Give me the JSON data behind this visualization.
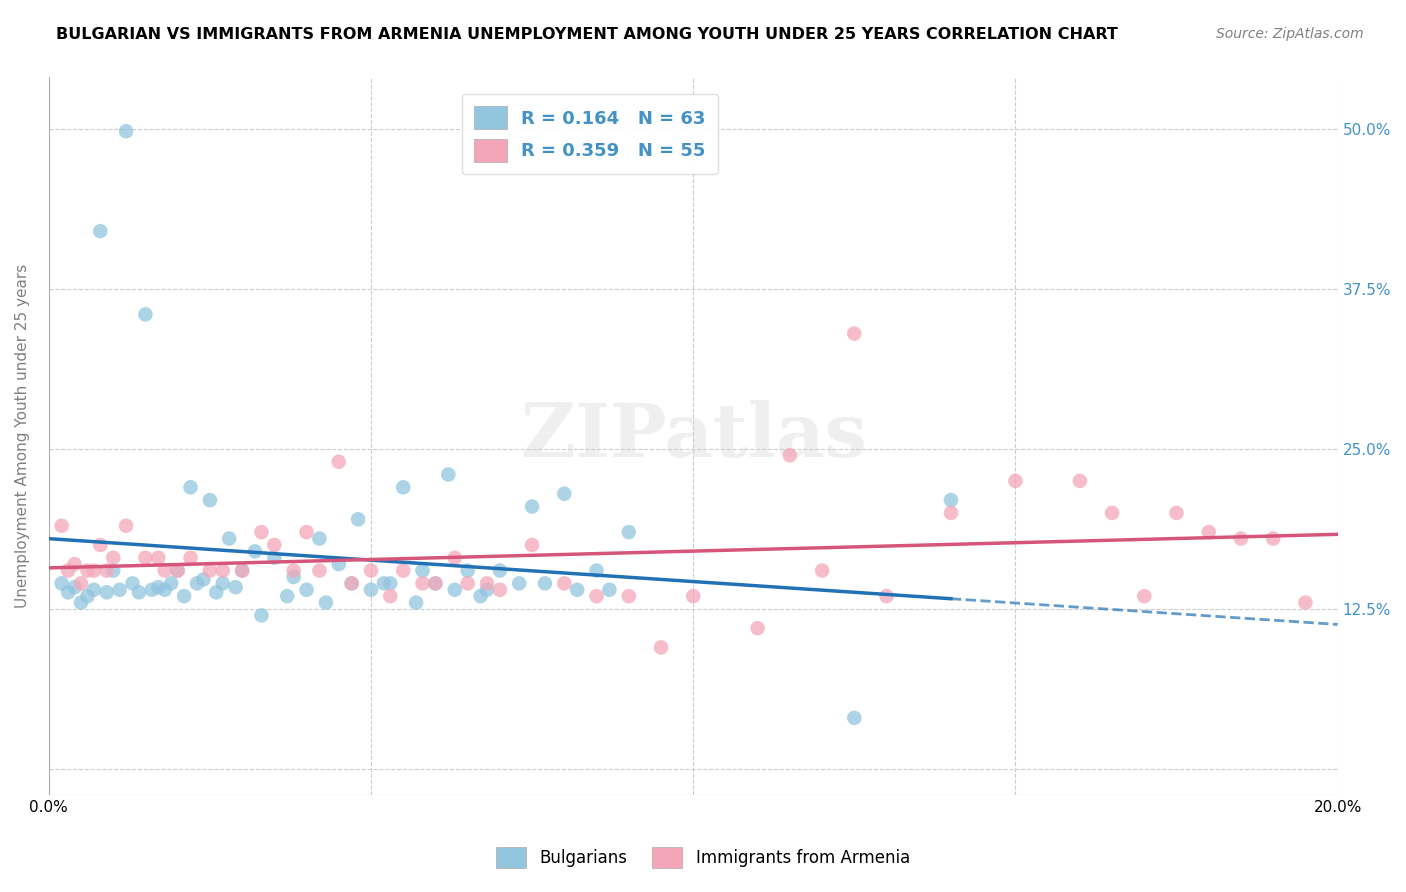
{
  "title": "BULGARIAN VS IMMIGRANTS FROM ARMENIA UNEMPLOYMENT AMONG YOUTH UNDER 25 YEARS CORRELATION CHART",
  "source": "Source: ZipAtlas.com",
  "ylabel": "Unemployment Among Youth under 25 years",
  "xlim": [
    0.0,
    0.2
  ],
  "ylim": [
    -0.02,
    0.54
  ],
  "legend_label1": "Bulgarians",
  "legend_label2": "Immigrants from Armenia",
  "R1": 0.164,
  "N1": 63,
  "R2": 0.359,
  "N2": 55,
  "color_blue": "#92c5de",
  "color_blue_line": "#2171b5",
  "color_pink": "#f4a6b8",
  "color_pink_line": "#d6557a",
  "color_label": "#4292c6",
  "watermark": "ZIPatlas",
  "bulgarians_x": [
    0.002,
    0.003,
    0.004,
    0.005,
    0.006,
    0.007,
    0.008,
    0.009,
    0.01,
    0.011,
    0.012,
    0.013,
    0.014,
    0.015,
    0.016,
    0.017,
    0.018,
    0.019,
    0.02,
    0.021,
    0.022,
    0.023,
    0.024,
    0.025,
    0.026,
    0.027,
    0.028,
    0.029,
    0.03,
    0.032,
    0.033,
    0.035,
    0.037,
    0.038,
    0.04,
    0.042,
    0.043,
    0.045,
    0.047,
    0.048,
    0.05,
    0.052,
    0.053,
    0.055,
    0.057,
    0.058,
    0.06,
    0.062,
    0.063,
    0.065,
    0.067,
    0.068,
    0.07,
    0.073,
    0.075,
    0.077,
    0.08,
    0.082,
    0.085,
    0.087,
    0.09,
    0.14,
    0.125
  ],
  "bulgarians_y": [
    0.145,
    0.138,
    0.142,
    0.13,
    0.135,
    0.14,
    0.42,
    0.138,
    0.155,
    0.14,
    0.498,
    0.145,
    0.138,
    0.355,
    0.14,
    0.142,
    0.14,
    0.145,
    0.155,
    0.135,
    0.22,
    0.145,
    0.148,
    0.21,
    0.138,
    0.145,
    0.18,
    0.142,
    0.155,
    0.17,
    0.12,
    0.165,
    0.135,
    0.15,
    0.14,
    0.18,
    0.13,
    0.16,
    0.145,
    0.195,
    0.14,
    0.145,
    0.145,
    0.22,
    0.13,
    0.155,
    0.145,
    0.23,
    0.14,
    0.155,
    0.135,
    0.14,
    0.155,
    0.145,
    0.205,
    0.145,
    0.215,
    0.14,
    0.155,
    0.14,
    0.185,
    0.21,
    0.04
  ],
  "armenians_x": [
    0.002,
    0.003,
    0.004,
    0.005,
    0.006,
    0.007,
    0.008,
    0.009,
    0.01,
    0.012,
    0.015,
    0.017,
    0.018,
    0.02,
    0.022,
    0.025,
    0.027,
    0.03,
    0.033,
    0.035,
    0.038,
    0.04,
    0.042,
    0.045,
    0.047,
    0.05,
    0.053,
    0.055,
    0.058,
    0.06,
    0.063,
    0.065,
    0.068,
    0.07,
    0.075,
    0.08,
    0.085,
    0.09,
    0.095,
    0.1,
    0.11,
    0.115,
    0.12,
    0.13,
    0.14,
    0.15,
    0.16,
    0.165,
    0.17,
    0.175,
    0.18,
    0.185,
    0.19,
    0.195,
    0.125
  ],
  "armenians_y": [
    0.19,
    0.155,
    0.16,
    0.145,
    0.155,
    0.155,
    0.175,
    0.155,
    0.165,
    0.19,
    0.165,
    0.165,
    0.155,
    0.155,
    0.165,
    0.155,
    0.155,
    0.155,
    0.185,
    0.175,
    0.155,
    0.185,
    0.155,
    0.24,
    0.145,
    0.155,
    0.135,
    0.155,
    0.145,
    0.145,
    0.165,
    0.145,
    0.145,
    0.14,
    0.175,
    0.145,
    0.135,
    0.135,
    0.095,
    0.135,
    0.11,
    0.245,
    0.155,
    0.135,
    0.2,
    0.225,
    0.225,
    0.2,
    0.135,
    0.2,
    0.185,
    0.18,
    0.18,
    0.13,
    0.34
  ]
}
